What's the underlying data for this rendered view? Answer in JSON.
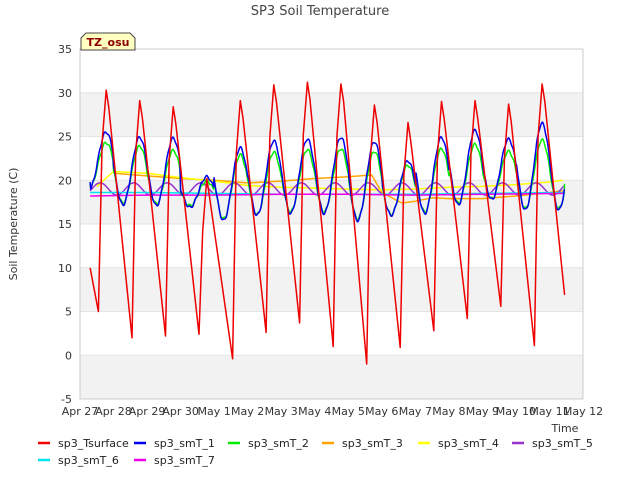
{
  "chart_data": {
    "type": "line",
    "title": "SP3 Soil Temperature",
    "xlabel": "Time",
    "ylabel": "Soil Temperature (C)",
    "site_badge": "TZ_osu",
    "xlim": [
      0,
      15
    ],
    "ylim": [
      -5,
      35
    ],
    "y_ticks": [
      -5,
      0,
      5,
      10,
      15,
      20,
      25,
      30,
      35
    ],
    "x_tick_positions": [
      0,
      1,
      2,
      3,
      4,
      5,
      6,
      7,
      8,
      9,
      10,
      11,
      12,
      13,
      14,
      15
    ],
    "x_tick_labels": [
      "Apr 27",
      "Apr 28",
      "Apr 29",
      "Apr 30",
      "May 1",
      "May 2",
      "May 3",
      "May 4",
      "May 5",
      "May 6",
      "May 7",
      "May 8",
      "May 9",
      "May 10",
      "May 11",
      "May 12"
    ],
    "bands": [
      [
        -5,
        0
      ],
      [
        5,
        10
      ],
      [
        15,
        20
      ],
      [
        25,
        30
      ]
    ],
    "series": [
      {
        "name": "sp3_Tsurface",
        "color": "#ee0000",
        "mode": "surface",
        "start": 0.3,
        "end": 14.45,
        "peaks": [
          {
            "t": 0.78,
            "v": 30.3
          },
          {
            "t": 1.78,
            "v": 29.1
          },
          {
            "t": 2.78,
            "v": 28.4
          },
          {
            "t": 3.78,
            "v": 20.2
          },
          {
            "t": 4.78,
            "v": 29.1
          },
          {
            "t": 5.78,
            "v": 30.9
          },
          {
            "t": 6.78,
            "v": 31.2
          },
          {
            "t": 7.78,
            "v": 31.0
          },
          {
            "t": 8.78,
            "v": 28.6
          },
          {
            "t": 9.78,
            "v": 26.6
          },
          {
            "t": 10.78,
            "v": 29.0
          },
          {
            "t": 11.78,
            "v": 29.1
          },
          {
            "t": 12.78,
            "v": 28.7
          },
          {
            "t": 13.78,
            "v": 31.0
          }
        ],
        "mins": [
          {
            "t": 0.55,
            "v": 5.0
          },
          {
            "t": 1.55,
            "v": 2.0
          },
          {
            "t": 2.55,
            "v": 2.2
          },
          {
            "t": 3.55,
            "v": 2.4
          },
          {
            "t": 4.55,
            "v": -0.4
          },
          {
            "t": 5.55,
            "v": 2.6
          },
          {
            "t": 6.55,
            "v": 3.7
          },
          {
            "t": 7.55,
            "v": 1.0
          },
          {
            "t": 8.55,
            "v": -1.0
          },
          {
            "t": 9.55,
            "v": 0.9
          },
          {
            "t": 10.55,
            "v": 2.8
          },
          {
            "t": 11.55,
            "v": 4.2
          },
          {
            "t": 12.55,
            "v": 5.6
          },
          {
            "t": 13.55,
            "v": 1.1
          }
        ],
        "start_value": 10.0,
        "end_value": 6.9
      },
      {
        "name": "sp3_smT_1",
        "color": "#0000ee",
        "mode": "diurnal",
        "start": 0.3,
        "end": 14.45,
        "peaks": [
          25.5,
          24.9,
          24.8,
          20.4,
          23.7,
          24.5,
          24.7,
          24.9,
          24.4,
          22.2,
          24.9,
          25.7,
          24.7,
          26.5
        ],
        "mins": [
          19.0,
          17.2,
          17.1,
          16.9,
          15.4,
          16.0,
          16.2,
          16.2,
          15.4,
          16.0,
          16.2,
          17.2,
          17.8,
          16.6
        ],
        "start_value": 19.8,
        "end_value": 18.9
      },
      {
        "name": "sp3_smT_2",
        "color": "#00ee00",
        "mode": "diurnal",
        "start": 0.3,
        "end": 14.45,
        "peaks": [
          24.3,
          23.9,
          23.4,
          19.9,
          22.9,
          23.2,
          23.5,
          23.6,
          23.3,
          21.7,
          23.6,
          24.1,
          23.3,
          24.6
        ],
        "mins": [
          19.1,
          17.4,
          17.3,
          17.1,
          15.6,
          16.1,
          16.4,
          16.4,
          15.6,
          16.1,
          16.4,
          17.4,
          17.9,
          16.8
        ],
        "start_value": 19.7,
        "end_value": 19.6
      },
      {
        "name": "sp3_smT_3",
        "color": "#ffa500",
        "mode": "points",
        "points": [
          [
            1.0,
            20.8
          ],
          [
            2.0,
            20.5
          ],
          [
            3.0,
            20.2
          ],
          [
            4.0,
            20.0
          ],
          [
            5.0,
            19.7
          ],
          [
            6.0,
            19.9
          ],
          [
            7.0,
            20.2
          ],
          [
            8.0,
            20.4
          ],
          [
            8.7,
            20.6
          ],
          [
            9.0,
            18.6
          ],
          [
            9.6,
            17.4
          ],
          [
            10.0,
            17.6
          ],
          [
            10.5,
            18.0
          ],
          [
            11.0,
            17.9
          ],
          [
            12.0,
            17.9
          ],
          [
            13.0,
            18.2
          ],
          [
            14.0,
            18.6
          ],
          [
            14.4,
            18.8
          ]
        ]
      },
      {
        "name": "sp3_smT_4",
        "color": "#ffff00",
        "mode": "points",
        "points": [
          [
            0.5,
            19.3
          ],
          [
            1.0,
            21.0
          ],
          [
            2.0,
            20.8
          ],
          [
            3.0,
            20.3
          ],
          [
            4.0,
            19.9
          ],
          [
            5.0,
            19.4
          ],
          [
            6.0,
            19.2
          ],
          [
            7.0,
            19.1
          ],
          [
            8.0,
            19.0
          ],
          [
            9.0,
            18.9
          ],
          [
            10.0,
            19.0
          ],
          [
            11.0,
            19.2
          ],
          [
            12.0,
            19.3
          ],
          [
            13.0,
            19.5
          ],
          [
            14.0,
            19.8
          ],
          [
            14.4,
            20.0
          ]
        ]
      },
      {
        "name": "sp3_smT_5",
        "color": "#9932cc",
        "mode": "wave",
        "start": 0.3,
        "end": 14.45,
        "base": 19.0,
        "amp": 0.7,
        "phase": 0.6
      },
      {
        "name": "sp3_smT_6",
        "color": "#00e5ee",
        "mode": "points",
        "points": [
          [
            0.3,
            18.6
          ],
          [
            2.0,
            18.6
          ],
          [
            4.0,
            18.5
          ],
          [
            6.0,
            18.4
          ],
          [
            8.0,
            18.4
          ],
          [
            10.0,
            18.4
          ],
          [
            12.0,
            18.5
          ],
          [
            14.45,
            18.6
          ]
        ]
      },
      {
        "name": "sp3_smT_7",
        "color": "#ee00ee",
        "mode": "points",
        "points": [
          [
            0.3,
            18.2
          ],
          [
            2.0,
            18.3
          ],
          [
            4.0,
            18.3
          ],
          [
            6.0,
            18.4
          ],
          [
            8.0,
            18.4
          ],
          [
            10.0,
            18.3
          ],
          [
            12.0,
            18.4
          ],
          [
            14.45,
            18.5
          ]
        ]
      }
    ]
  }
}
